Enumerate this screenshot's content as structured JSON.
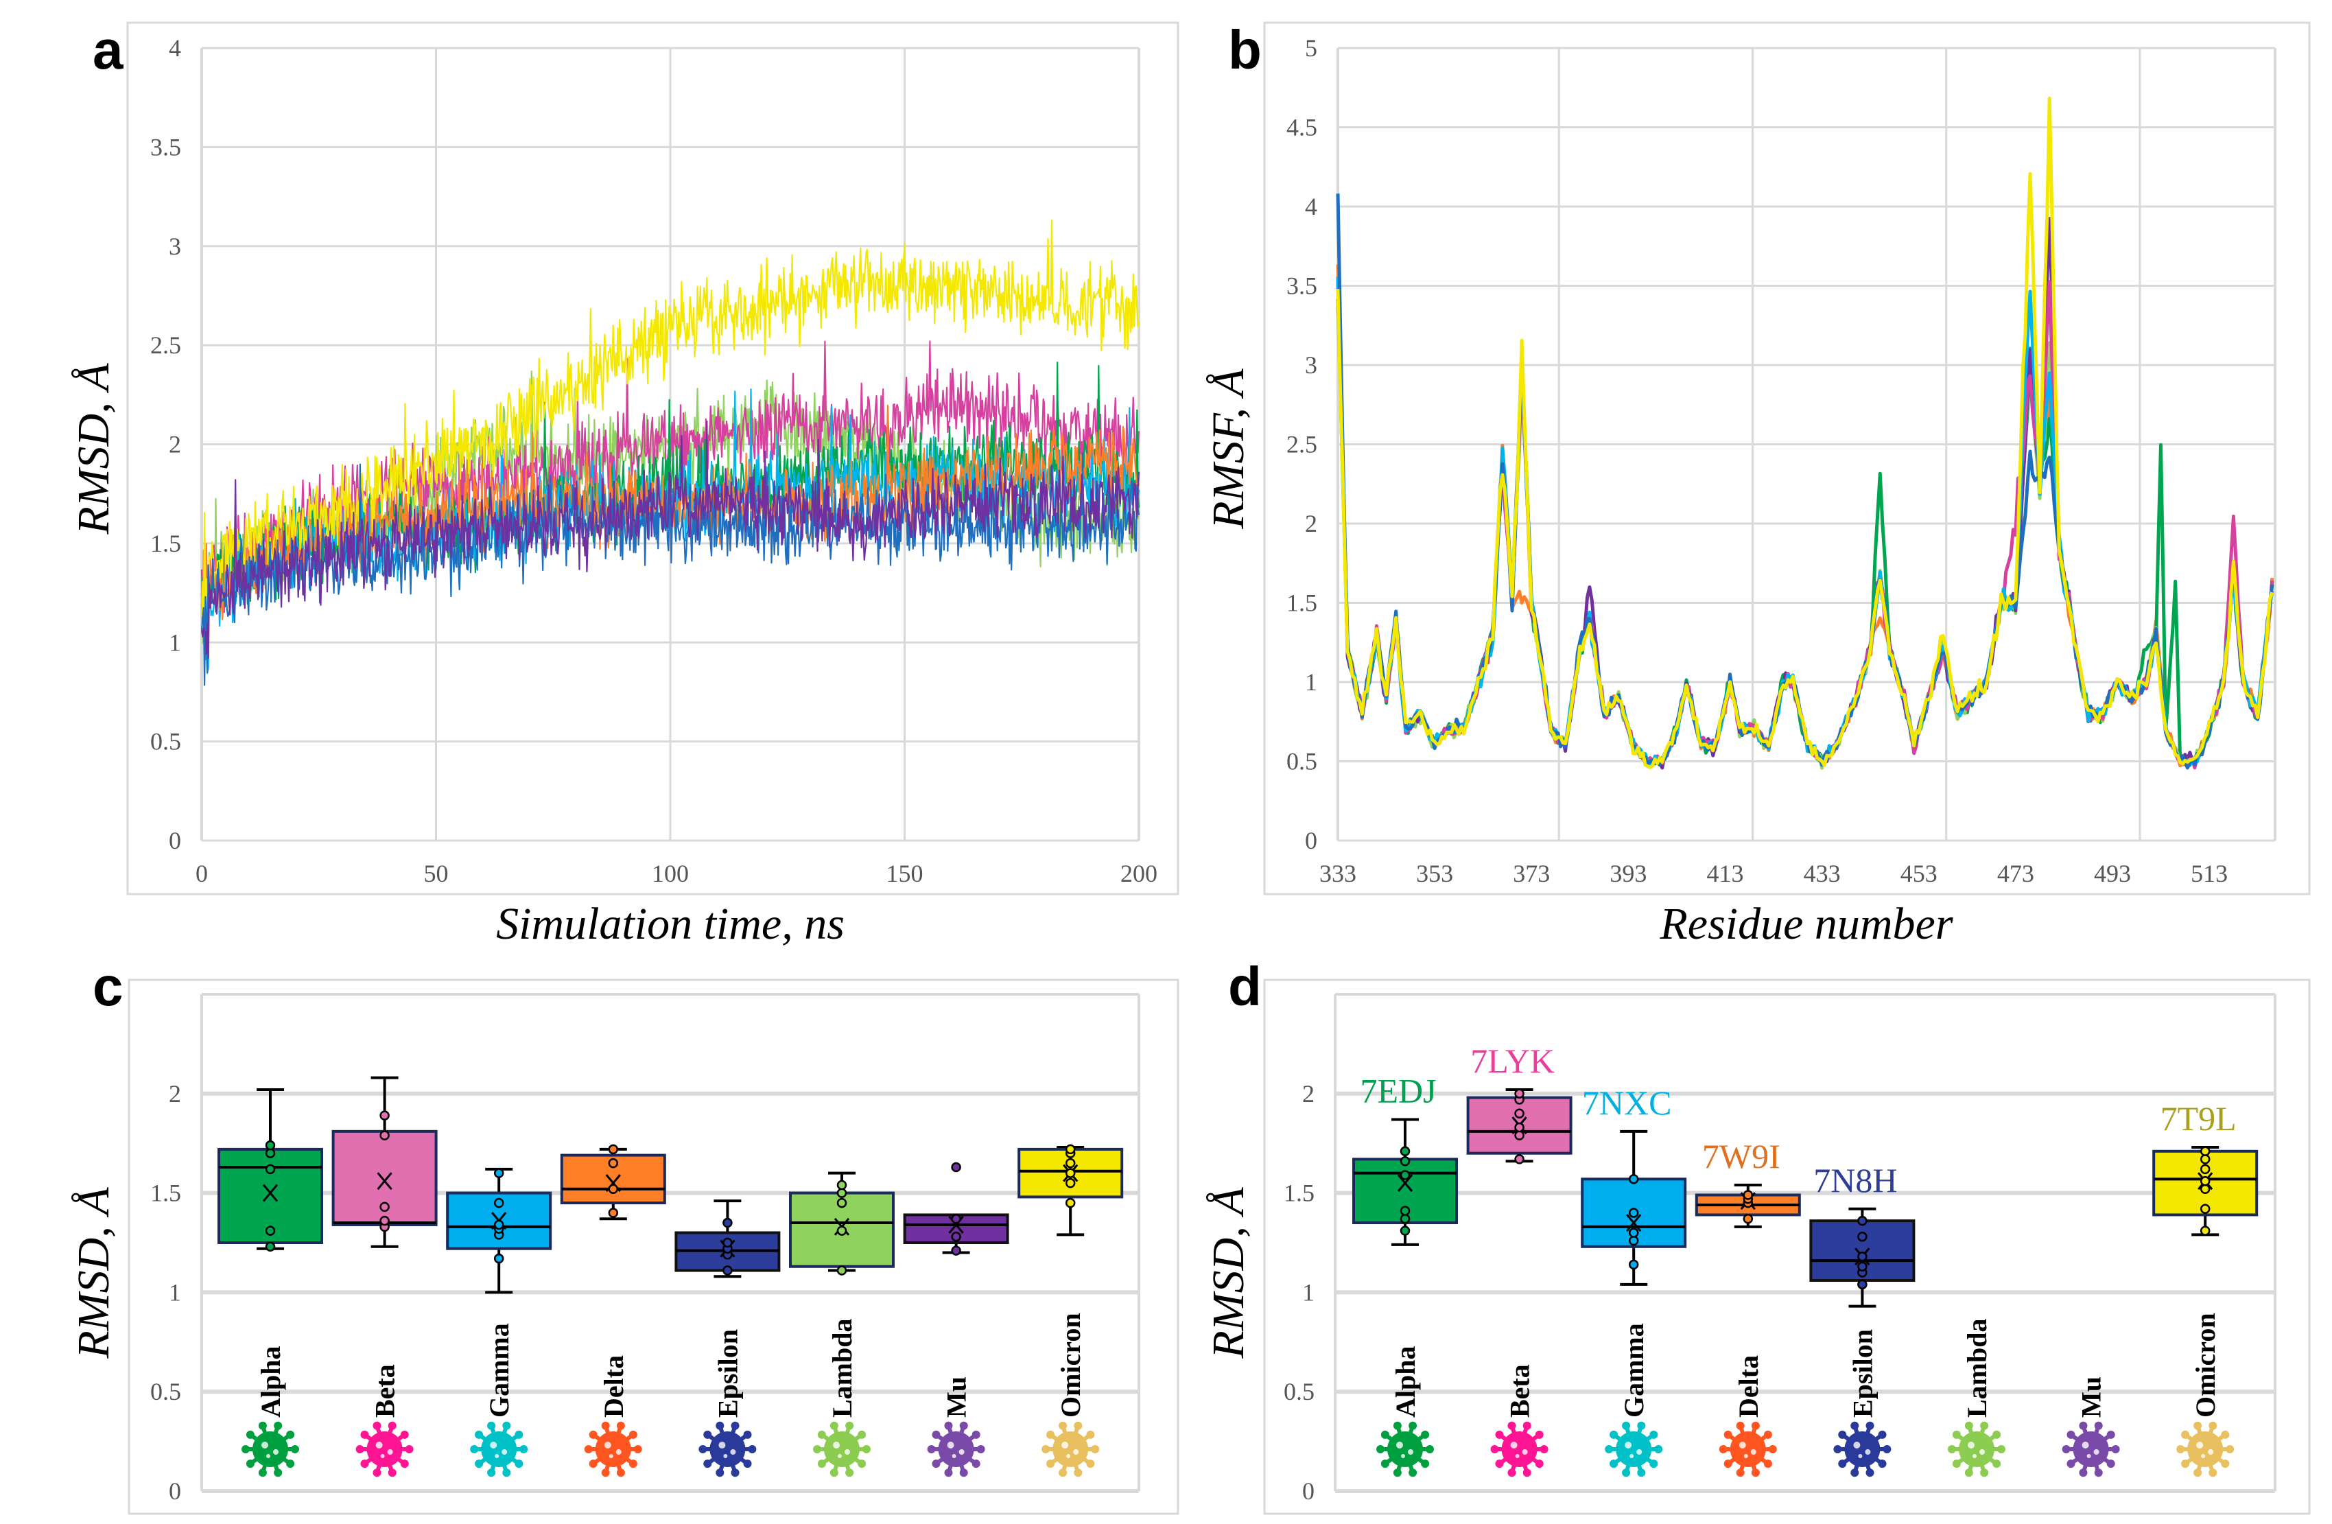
{
  "panels": {
    "a": "a",
    "b": "b",
    "c": "c",
    "d": "d"
  },
  "colors": {
    "Alpha": "#00a54f",
    "Beta": "#e070b0",
    "Gamma": "#00aeef",
    "Delta": "#ff7f27",
    "Epsilon": "#2d3d9c",
    "Lambda": "#8fd25e",
    "Mu": "#7030a0",
    "Omicron": "#f5e800"
  },
  "line_colors": {
    "Alpha": "#00a54f",
    "Beta": "#d6409f",
    "Gamma": "#00b4ef",
    "Delta": "#ff7f27",
    "Epsilon": "#1f6fc0",
    "Lambda": "#8fd25e",
    "Mu": "#7030a0",
    "Omicron": "#f5e800"
  },
  "virus_colors": {
    "Alpha": "#00a040",
    "Beta": "#ff1493",
    "Gamma": "#00c0c8",
    "Delta": "#ff5520",
    "Epsilon": "#2a3a9a",
    "Lambda": "#8ccc50",
    "Mu": "#7a4aa8",
    "Omicron": "#e8c060"
  },
  "chart_data": [
    {
      "id": "a",
      "type": "line",
      "xlabel": "Simulation time, ns",
      "ylabel": "RMSD, Å",
      "xlim": [
        0,
        200
      ],
      "ylim": [
        0,
        4
      ],
      "xticks": [
        "0",
        "50",
        "100",
        "150",
        "200"
      ],
      "yticks": [
        "0",
        "0.5",
        "1",
        "1.5",
        "2",
        "2.5",
        "3",
        "3.5",
        "4"
      ],
      "grid": true,
      "x": [
        0,
        20,
        40,
        60,
        80,
        100,
        120,
        140,
        160,
        180,
        200
      ],
      "series": [
        {
          "name": "Lambda",
          "values": [
            1.3,
            1.5,
            1.6,
            2.0,
            1.9,
            2.0,
            2.1,
            2.0,
            1.8,
            1.6,
            1.6
          ]
        },
        {
          "name": "Beta",
          "values": [
            1.3,
            1.6,
            1.8,
            1.8,
            1.9,
            2.0,
            2.1,
            2.1,
            2.2,
            2.1,
            2.0
          ]
        },
        {
          "name": "Alpha",
          "values": [
            1.3,
            1.5,
            1.6,
            1.6,
            1.7,
            1.8,
            1.8,
            1.9,
            1.9,
            1.9,
            1.8
          ]
        },
        {
          "name": "Gamma",
          "values": [
            1.2,
            1.5,
            1.5,
            1.6,
            1.7,
            1.7,
            1.8,
            1.8,
            1.8,
            1.8,
            1.8
          ]
        },
        {
          "name": "Delta",
          "values": [
            1.3,
            1.5,
            1.6,
            1.7,
            1.7,
            1.7,
            1.7,
            1.7,
            1.8,
            1.9,
            1.9
          ]
        },
        {
          "name": "Omicron",
          "values": [
            1.4,
            1.6,
            1.8,
            2.0,
            2.3,
            2.6,
            2.7,
            2.8,
            2.8,
            2.7,
            2.7
          ]
        },
        {
          "name": "Epsilon",
          "values": [
            1.2,
            1.4,
            1.4,
            1.5,
            1.6,
            1.6,
            1.6,
            1.6,
            1.6,
            1.6,
            1.6
          ]
        },
        {
          "name": "Mu",
          "values": [
            1.2,
            1.4,
            1.5,
            1.6,
            1.6,
            1.7,
            1.7,
            1.6,
            1.7,
            1.7,
            1.7
          ]
        }
      ]
    },
    {
      "id": "b",
      "type": "line",
      "xlabel": "Residue number",
      "ylabel": "RMSF, Å",
      "xlim": [
        333,
        526
      ],
      "ylim": [
        0,
        5
      ],
      "xticks": [
        "333",
        "353",
        "373",
        "393",
        "413",
        "433",
        "453",
        "473",
        "493",
        "513"
      ],
      "yticks": [
        "0",
        "0.5",
        "1",
        "1.5",
        "2",
        "2.5",
        "3",
        "3.5",
        "4",
        "4.5",
        "5"
      ],
      "grid": true,
      "base_profile": [
        [
          333,
          3.5
        ],
        [
          335,
          1.2
        ],
        [
          338,
          0.8
        ],
        [
          341,
          1.3
        ],
        [
          343,
          0.9
        ],
        [
          345,
          1.4
        ],
        [
          347,
          0.7
        ],
        [
          350,
          0.8
        ],
        [
          353,
          0.6
        ],
        [
          356,
          0.7
        ],
        [
          359,
          0.7
        ],
        [
          362,
          1.0
        ],
        [
          365,
          1.3
        ],
        [
          367,
          2.4
        ],
        [
          369,
          1.5
        ],
        [
          371,
          3.0
        ],
        [
          373,
          1.5
        ],
        [
          375,
          1.1
        ],
        [
          377,
          0.7
        ],
        [
          380,
          0.6
        ],
        [
          383,
          1.2
        ],
        [
          385,
          1.4
        ],
        [
          388,
          0.8
        ],
        [
          391,
          0.9
        ],
        [
          394,
          0.6
        ],
        [
          397,
          0.5
        ],
        [
          400,
          0.5
        ],
        [
          403,
          0.7
        ],
        [
          405,
          1.0
        ],
        [
          408,
          0.6
        ],
        [
          411,
          0.6
        ],
        [
          414,
          1.0
        ],
        [
          416,
          0.7
        ],
        [
          419,
          0.7
        ],
        [
          422,
          0.6
        ],
        [
          425,
          1.0
        ],
        [
          427,
          1.0
        ],
        [
          430,
          0.6
        ],
        [
          433,
          0.5
        ],
        [
          436,
          0.6
        ],
        [
          440,
          0.9
        ],
        [
          443,
          1.2
        ],
        [
          445,
          1.7
        ],
        [
          447,
          1.2
        ],
        [
          450,
          0.9
        ],
        [
          452,
          0.6
        ],
        [
          455,
          0.9
        ],
        [
          458,
          1.2
        ],
        [
          461,
          0.8
        ],
        [
          464,
          0.9
        ],
        [
          467,
          1.0
        ],
        [
          470,
          1.5
        ],
        [
          473,
          1.5
        ],
        [
          476,
          3.0
        ],
        [
          478,
          2.2
        ],
        [
          480,
          3.3
        ],
        [
          482,
          1.8
        ],
        [
          484,
          1.5
        ],
        [
          486,
          1.1
        ],
        [
          488,
          0.8
        ],
        [
          491,
          0.8
        ],
        [
          494,
          1.0
        ],
        [
          497,
          0.9
        ],
        [
          500,
          1.0
        ],
        [
          502,
          1.3
        ],
        [
          504,
          0.7
        ],
        [
          507,
          0.5
        ],
        [
          510,
          0.5
        ],
        [
          513,
          0.7
        ],
        [
          516,
          1.0
        ],
        [
          518,
          1.7
        ],
        [
          520,
          1.0
        ],
        [
          523,
          0.8
        ],
        [
          526,
          1.6
        ]
      ],
      "series": [
        {
          "name": "Delta",
          "overrides": [
            [
              371,
              1.5
            ],
            [
              445,
              1.4
            ],
            [
              480,
              2.8
            ],
            [
              502,
              1.4
            ]
          ]
        },
        {
          "name": "Alpha",
          "overrides": [
            [
              445,
              2.3
            ],
            [
              480,
              2.6
            ],
            [
              500,
              1.2
            ],
            [
              503,
              2.5
            ],
            [
              506,
              1.6
            ],
            [
              509,
              0.5
            ]
          ]
        },
        {
          "name": "Lambda",
          "overrides": [
            [
              480,
              3.2
            ]
          ]
        },
        {
          "name": "Mu",
          "overrides": [
            [
              480,
              3.9
            ],
            [
              385,
              1.6
            ]
          ]
        },
        {
          "name": "Beta",
          "overrides": [
            [
              473,
              2.0
            ],
            [
              480,
              3.5
            ],
            [
              518,
              2.0
            ]
          ]
        },
        {
          "name": "Gamma",
          "overrides": [
            [
              367,
              2.5
            ],
            [
              476,
              3.6
            ],
            [
              480,
              3.0
            ]
          ]
        },
        {
          "name": "Epsilon",
          "overrides": [
            [
              333,
              3.9
            ],
            [
              480,
              2.4
            ],
            [
              476,
              2.4
            ]
          ]
        },
        {
          "name": "Omicron",
          "overrides": [
            [
              371,
              3.1
            ],
            [
              476,
              4.2
            ],
            [
              480,
              4.75
            ],
            [
              458,
              1.3
            ]
          ]
        }
      ]
    },
    {
      "id": "c",
      "type": "box",
      "ylabel": "RMSD, Å",
      "ylim": [
        0,
        2.5
      ],
      "yticks": [
        "0",
        "0.5",
        "1",
        "1.5",
        "2"
      ],
      "categories": [
        "Alpha",
        "Beta",
        "Gamma",
        "Delta",
        "Epsilon",
        "Lambda",
        "Mu",
        "Omicron"
      ],
      "boxes": [
        {
          "min": 1.22,
          "q1": 1.25,
          "median": 1.63,
          "q3": 1.72,
          "max": 2.02,
          "mean": 1.5,
          "points": [
            1.23,
            1.31,
            1.62,
            1.7,
            1.74
          ]
        },
        {
          "min": 1.23,
          "q1": 1.34,
          "median": 1.35,
          "q3": 1.81,
          "max": 2.08,
          "mean": 1.56,
          "points": [
            1.33,
            1.36,
            1.43,
            1.79,
            1.89
          ]
        },
        {
          "min": 1.0,
          "q1": 1.22,
          "median": 1.33,
          "q3": 1.5,
          "max": 1.62,
          "mean": 1.36,
          "points": [
            1.17,
            1.29,
            1.32,
            1.34,
            1.45,
            1.6
          ]
        },
        {
          "min": 1.37,
          "q1": 1.45,
          "median": 1.52,
          "q3": 1.69,
          "max": 1.72,
          "mean": 1.55,
          "points": [
            1.4,
            1.52,
            1.65,
            1.72
          ]
        },
        {
          "min": 1.08,
          "q1": 1.11,
          "median": 1.21,
          "q3": 1.3,
          "max": 1.46,
          "mean": 1.22,
          "points": [
            1.11,
            1.19,
            1.22,
            1.25,
            1.35
          ]
        },
        {
          "min": 1.11,
          "q1": 1.13,
          "median": 1.35,
          "q3": 1.5,
          "max": 1.6,
          "mean": 1.33,
          "points": [
            1.11,
            1.31,
            1.45,
            1.5,
            1.54
          ]
        },
        {
          "min": 1.2,
          "q1": 1.25,
          "median": 1.34,
          "q3": 1.39,
          "max": 1.39,
          "mean": 1.34,
          "points": [
            1.21,
            1.28,
            1.37,
            1.63
          ]
        },
        {
          "min": 1.29,
          "q1": 1.48,
          "median": 1.61,
          "q3": 1.72,
          "max": 1.73,
          "mean": 1.6,
          "points": [
            1.45,
            1.55,
            1.6,
            1.65,
            1.7,
            1.72
          ]
        }
      ]
    },
    {
      "id": "d",
      "type": "box",
      "ylabel": "RMSD, Å",
      "ylim": [
        0,
        2.5
      ],
      "yticks": [
        "0",
        "0.5",
        "1",
        "1.5",
        "2"
      ],
      "categories": [
        "Alpha",
        "Beta",
        "Gamma",
        "Delta",
        "Epsilon",
        "Lambda",
        "Mu",
        "Omicron"
      ],
      "boxes": [
        {
          "label": "7EDJ",
          "label_color": "#00a050",
          "min": 1.24,
          "q1": 1.35,
          "median": 1.6,
          "q3": 1.67,
          "max": 1.87,
          "mean": 1.55,
          "points": [
            1.31,
            1.37,
            1.41,
            1.59,
            1.66,
            1.71
          ]
        },
        {
          "label": "7LYK",
          "label_color": "#e8409a",
          "min": 1.66,
          "q1": 1.7,
          "median": 1.81,
          "q3": 1.98,
          "max": 2.02,
          "mean": 1.84,
          "points": [
            1.67,
            1.79,
            1.83,
            1.9,
            1.97,
            2.0
          ]
        },
        {
          "label": "7NXC",
          "label_color": "#00b0e0",
          "min": 1.04,
          "q1": 1.23,
          "median": 1.33,
          "q3": 1.57,
          "max": 1.81,
          "mean": 1.35,
          "points": [
            1.14,
            1.26,
            1.3,
            1.4,
            1.57
          ]
        },
        {
          "label": "7W9I",
          "label_color": "#e07020",
          "min": 1.33,
          "q1": 1.39,
          "median": 1.44,
          "q3": 1.49,
          "max": 1.54,
          "mean": 1.46,
          "points": [
            1.37,
            1.45,
            1.47,
            1.49
          ]
        },
        {
          "label": "7N8H",
          "label_color": "#2e3d98",
          "min": 0.93,
          "q1": 1.06,
          "median": 1.16,
          "q3": 1.36,
          "max": 1.42,
          "mean": 1.18,
          "points": [
            1.04,
            1.1,
            1.13,
            1.18,
            1.28,
            1.36
          ]
        },
        null,
        null,
        {
          "label": "7T9L",
          "label_color": "#a8a020",
          "min": 1.29,
          "q1": 1.39,
          "median": 1.57,
          "q3": 1.71,
          "max": 1.73,
          "mean": 1.56,
          "points": [
            1.31,
            1.42,
            1.52,
            1.56,
            1.62,
            1.67,
            1.71
          ]
        }
      ]
    }
  ]
}
